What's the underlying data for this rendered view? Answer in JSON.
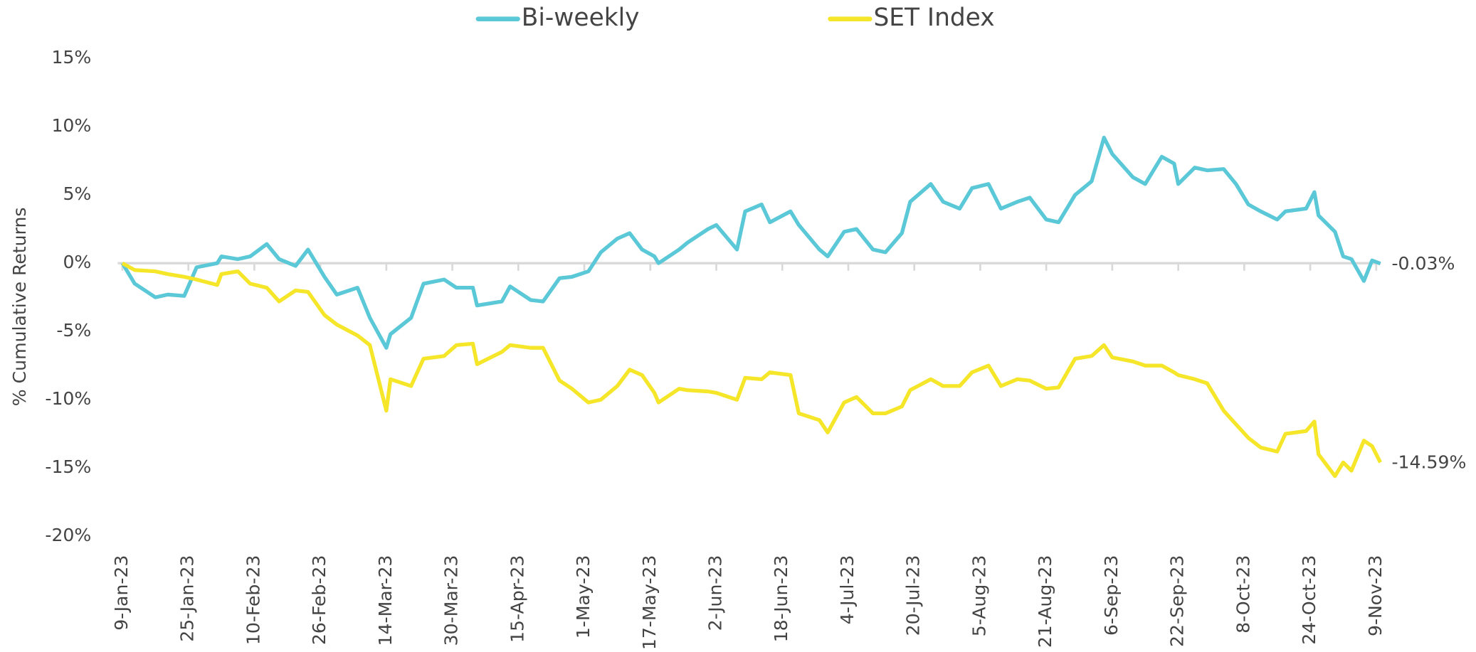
{
  "chart_data": {
    "type": "line",
    "y_label": "% Cumulative Returns",
    "x": [
      "2023-01-09",
      "2023-01-12",
      "2023-01-17",
      "2023-01-20",
      "2023-01-24",
      "2023-01-27",
      "2023-02-01",
      "2023-02-02",
      "2023-02-06",
      "2023-02-09",
      "2023-02-13",
      "2023-02-16",
      "2023-02-20",
      "2023-02-23",
      "2023-02-27",
      "2023-03-02",
      "2023-03-07",
      "2023-03-10",
      "2023-03-14",
      "2023-03-15",
      "2023-03-20",
      "2023-03-23",
      "2023-03-28",
      "2023-03-31",
      "2023-04-04",
      "2023-04-05",
      "2023-04-11",
      "2023-04-13",
      "2023-04-18",
      "2023-04-21",
      "2023-04-25",
      "2023-04-28",
      "2023-05-02",
      "2023-05-05",
      "2023-05-09",
      "2023-05-12",
      "2023-05-15",
      "2023-05-18",
      "2023-05-19",
      "2023-05-24",
      "2023-05-26",
      "2023-05-31",
      "2023-06-02",
      "2023-06-07",
      "2023-06-09",
      "2023-06-13",
      "2023-06-15",
      "2023-06-20",
      "2023-06-22",
      "2023-06-27",
      "2023-06-29",
      "2023-07-03",
      "2023-07-06",
      "2023-07-10",
      "2023-07-13",
      "2023-07-17",
      "2023-07-19",
      "2023-07-24",
      "2023-07-27",
      "2023-07-31",
      "2023-08-03",
      "2023-08-07",
      "2023-08-10",
      "2023-08-14",
      "2023-08-17",
      "2023-08-21",
      "2023-08-24",
      "2023-08-28",
      "2023-09-01",
      "2023-09-04",
      "2023-09-06",
      "2023-09-11",
      "2023-09-14",
      "2023-09-18",
      "2023-09-21",
      "2023-09-22",
      "2023-09-26",
      "2023-09-29",
      "2023-10-03",
      "2023-10-06",
      "2023-10-09",
      "2023-10-12",
      "2023-10-16",
      "2023-10-18",
      "2023-10-23",
      "2023-10-25",
      "2023-10-26",
      "2023-10-30",
      "2023-11-01",
      "2023-11-03",
      "2023-11-06",
      "2023-11-08",
      "2023-11-10"
    ],
    "series": [
      {
        "name": "Bi-weekly",
        "color": "#5bc8d8",
        "values": [
          0,
          -1.5,
          -2.5,
          -2.3,
          -2.4,
          -0.3,
          0,
          0.5,
          0.3,
          0.5,
          1.4,
          0.3,
          -0.2,
          1.0,
          -1.0,
          -2.3,
          -1.8,
          -4.0,
          -6.2,
          -5.2,
          -4.0,
          -1.5,
          -1.2,
          -1.8,
          -1.8,
          -3.1,
          -2.8,
          -1.7,
          -2.7,
          -2.8,
          -1.1,
          -1.0,
          -0.6,
          0.8,
          1.8,
          2.2,
          1.0,
          0.5,
          0,
          1.0,
          1.5,
          2.5,
          2.8,
          1.0,
          3.8,
          4.3,
          3.0,
          3.8,
          2.8,
          1.0,
          0.5,
          2.3,
          2.5,
          1.0,
          0.8,
          2.2,
          4.5,
          5.8,
          4.5,
          4.0,
          5.5,
          5.8,
          4.0,
          4.5,
          4.8,
          3.2,
          3.0,
          5.0,
          6.0,
          9.2,
          8.0,
          6.3,
          5.8,
          7.8,
          7.3,
          5.8,
          7.0,
          6.8,
          6.9,
          5.8,
          4.3,
          3.8,
          3.2,
          3.8,
          4.0,
          5.2,
          3.5,
          2.3,
          0.5,
          0.3,
          -1.3,
          0.2,
          -0.03
        ],
        "value_labels": [
          null,
          null,
          null,
          null,
          null,
          null,
          null,
          null,
          null,
          null,
          null,
          null,
          null,
          null,
          null,
          null,
          null,
          null,
          null,
          null,
          null,
          null,
          null,
          null,
          null,
          null,
          null,
          null,
          null,
          null,
          null,
          null,
          null,
          null,
          null,
          null,
          null,
          null,
          null,
          null,
          null,
          null,
          null,
          null,
          null,
          null,
          null,
          null,
          null,
          null,
          null,
          null,
          null,
          null,
          null,
          null,
          null,
          null,
          null,
          null,
          null,
          null,
          null,
          null,
          null,
          null,
          null,
          null,
          null,
          null,
          null,
          null,
          null,
          null,
          null,
          null,
          null,
          null,
          null,
          null,
          null,
          null,
          null,
          null,
          null,
          null,
          null,
          null,
          null,
          null,
          null,
          null,
          "-0.03%"
        ]
      },
      {
        "name": "SET Index",
        "color": "#f5e62a",
        "values": [
          0,
          -0.5,
          -0.6,
          -0.8,
          -1.0,
          -1.2,
          -1.6,
          -0.8,
          -0.6,
          -1.5,
          -1.8,
          -2.8,
          -2.0,
          -2.1,
          -3.8,
          -4.5,
          -5.3,
          -6.0,
          -10.8,
          -8.5,
          -9.0,
          -7.0,
          -6.8,
          -6.0,
          -5.9,
          -7.4,
          -6.5,
          -6.0,
          -6.2,
          -6.2,
          -8.6,
          -9.2,
          -10.2,
          -10.0,
          -9.0,
          -7.8,
          -8.2,
          -9.5,
          -10.2,
          -9.2,
          -9.3,
          -9.4,
          -9.5,
          -10.0,
          -8.4,
          -8.5,
          -8.0,
          -8.2,
          -11.0,
          -11.5,
          -12.4,
          -10.2,
          -9.8,
          -11.0,
          -11.0,
          -10.5,
          -9.3,
          -8.5,
          -9.0,
          -9.0,
          -8.0,
          -7.5,
          -9.0,
          -8.5,
          -8.6,
          -9.2,
          -9.1,
          -7.0,
          -6.8,
          -6.0,
          -6.9,
          -7.2,
          -7.5,
          -7.5,
          -8.0,
          -8.2,
          -8.5,
          -8.8,
          -10.8,
          -11.8,
          -12.8,
          -13.5,
          -13.8,
          -12.5,
          -12.3,
          -11.6,
          -14.0,
          -15.6,
          -14.6,
          -15.2,
          -13.0,
          -13.4,
          -14.59
        ],
        "value_labels": [
          null,
          null,
          null,
          null,
          null,
          null,
          null,
          null,
          null,
          null,
          null,
          null,
          null,
          null,
          null,
          null,
          null,
          null,
          null,
          null,
          null,
          null,
          null,
          null,
          null,
          null,
          null,
          null,
          null,
          null,
          null,
          null,
          null,
          null,
          null,
          null,
          null,
          null,
          null,
          null,
          null,
          null,
          null,
          null,
          null,
          null,
          null,
          null,
          null,
          null,
          null,
          null,
          null,
          null,
          null,
          null,
          null,
          null,
          null,
          null,
          null,
          null,
          null,
          null,
          null,
          null,
          null,
          null,
          null,
          null,
          null,
          null,
          null,
          null,
          null,
          null,
          null,
          null,
          null,
          null,
          null,
          null,
          null,
          null,
          null,
          null,
          null,
          null,
          null,
          null,
          null,
          null,
          "-14.59%"
        ]
      }
    ],
    "xlim": [
      "2023-01-09",
      "2023-11-09"
    ],
    "xticks": [
      {
        "value": "2023-01-09",
        "label": "9-Jan-23"
      },
      {
        "value": "2023-01-25",
        "label": "25-Jan-23"
      },
      {
        "value": "2023-02-10",
        "label": "10-Feb-23"
      },
      {
        "value": "2023-02-26",
        "label": "26-Feb-23"
      },
      {
        "value": "2023-03-14",
        "label": "14-Mar-23"
      },
      {
        "value": "2023-03-30",
        "label": "30-Mar-23"
      },
      {
        "value": "2023-04-15",
        "label": "15-Apr-23"
      },
      {
        "value": "2023-05-01",
        "label": "1-May-23"
      },
      {
        "value": "2023-05-17",
        "label": "17-May-23"
      },
      {
        "value": "2023-06-02",
        "label": "2-Jun-23"
      },
      {
        "value": "2023-06-18",
        "label": "18-Jun-23"
      },
      {
        "value": "2023-07-04",
        "label": "4-Jul-23"
      },
      {
        "value": "2023-07-20",
        "label": "20-Jul-23"
      },
      {
        "value": "2023-08-05",
        "label": "5-Aug-23"
      },
      {
        "value": "2023-08-21",
        "label": "21-Aug-23"
      },
      {
        "value": "2023-09-06",
        "label": "6-Sep-23"
      },
      {
        "value": "2023-09-22",
        "label": "22-Sep-23"
      },
      {
        "value": "2023-10-08",
        "label": "8-Oct-23"
      },
      {
        "value": "2023-10-24",
        "label": "24-Oct-23"
      },
      {
        "value": "2023-11-09",
        "label": "9-Nov-23"
      }
    ],
    "ylim": [
      -20,
      15
    ],
    "yticks": [
      {
        "value": -20,
        "label": "-20%"
      },
      {
        "value": -15,
        "label": "-15%"
      },
      {
        "value": -10,
        "label": "-10%"
      },
      {
        "value": -5,
        "label": "-5%"
      },
      {
        "value": 0,
        "label": "0%"
      },
      {
        "value": 5,
        "label": "5%"
      },
      {
        "value": 10,
        "label": "10%"
      },
      {
        "value": 15,
        "label": "15%"
      }
    ],
    "legend": "top",
    "grid": false
  }
}
